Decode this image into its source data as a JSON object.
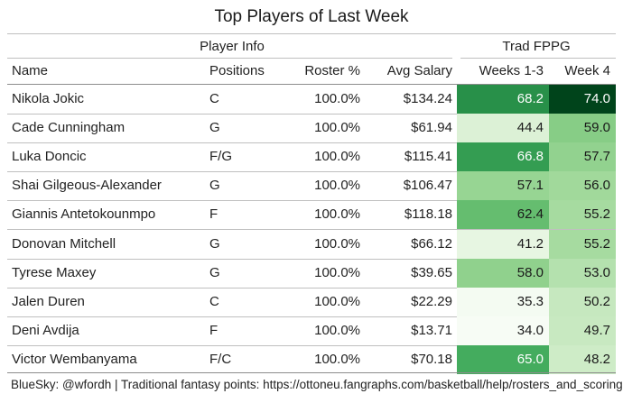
{
  "chart_data": {
    "type": "table",
    "title": "Top Players of Last Week",
    "spanners": [
      "Player Info",
      "Trad FPPG"
    ],
    "columns": [
      "Name",
      "Positions",
      "Roster %",
      "Avg Salary",
      "Weeks 1-3",
      "Week 4"
    ],
    "rows": [
      {
        "name": "Nikola Jokic",
        "positions": "C",
        "roster": "100.0%",
        "salary": "$134.24",
        "weeks13": 68.2,
        "week4": 74.0
      },
      {
        "name": "Cade Cunningham",
        "positions": "G",
        "roster": "100.0%",
        "salary": "$61.94",
        "weeks13": 44.4,
        "week4": 59.0
      },
      {
        "name": "Luka Doncic",
        "positions": "F/G",
        "roster": "100.0%",
        "salary": "$115.41",
        "weeks13": 66.8,
        "week4": 57.7
      },
      {
        "name": "Shai Gilgeous-Alexander",
        "positions": "G",
        "roster": "100.0%",
        "salary": "$106.47",
        "weeks13": 57.1,
        "week4": 56.0
      },
      {
        "name": "Giannis Antetokounmpo",
        "positions": "F",
        "roster": "100.0%",
        "salary": "$118.18",
        "weeks13": 62.4,
        "week4": 55.2
      },
      {
        "name": "Donovan Mitchell",
        "positions": "G",
        "roster": "100.0%",
        "salary": "$66.12",
        "weeks13": 41.2,
        "week4": 55.2
      },
      {
        "name": "Tyrese Maxey",
        "positions": "G",
        "roster": "100.0%",
        "salary": "$39.65",
        "weeks13": 58.0,
        "week4": 53.0
      },
      {
        "name": "Jalen Duren",
        "positions": "C",
        "roster": "100.0%",
        "salary": "$22.29",
        "weeks13": 35.3,
        "week4": 50.2
      },
      {
        "name": "Deni Avdija",
        "positions": "F",
        "roster": "100.0%",
        "salary": "$13.71",
        "weeks13": 34.0,
        "week4": 49.7
      },
      {
        "name": "Victor Wembanyama",
        "positions": "F/C",
        "roster": "100.0%",
        "salary": "$70.18",
        "weeks13": 65.0,
        "week4": 48.2
      }
    ],
    "color_scale": {
      "low": "#f7fcf5",
      "mid": "#74c476",
      "high": "#00441b",
      "domain": [
        34.0,
        74.0
      ]
    },
    "footer": "BlueSky: @wfordh | Traditional fantasy points: https://ottoneu.fangraphs.com/basketball/help/rosters_and_scoring"
  }
}
